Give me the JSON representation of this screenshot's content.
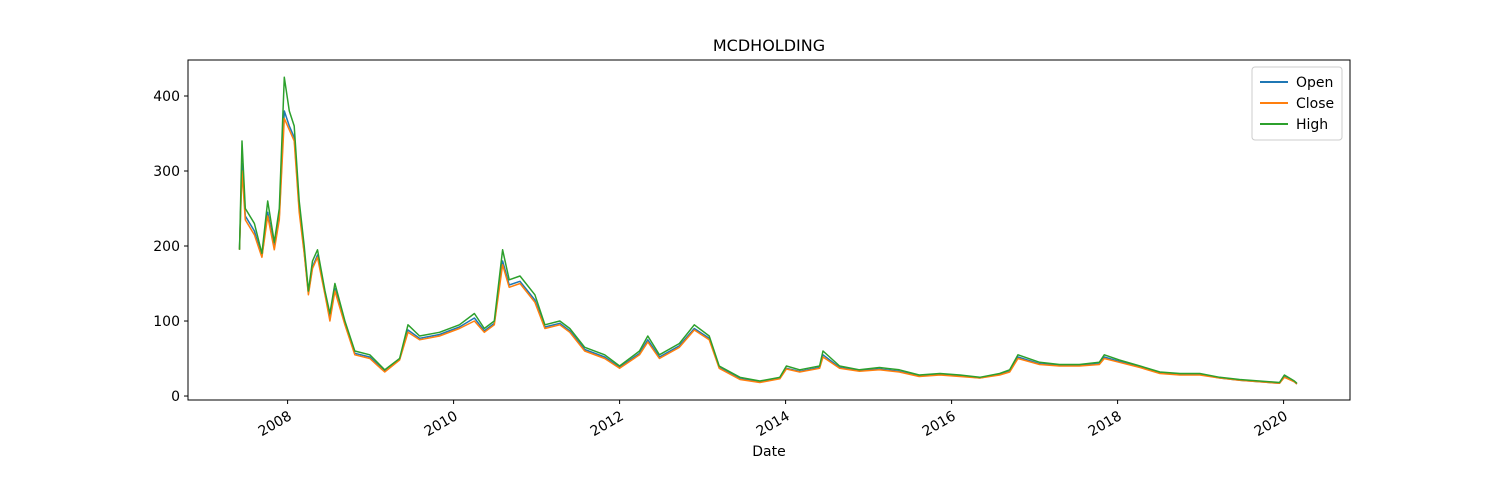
{
  "chart_data": {
    "type": "line",
    "title": "MCDHOLDING",
    "x_label": "Date",
    "x": [
      2007.42,
      2007.45,
      2007.49,
      2007.6,
      2007.69,
      2007.76,
      2007.84,
      2007.9,
      2007.96,
      2008.02,
      2008.08,
      2008.14,
      2008.2,
      2008.25,
      2008.3,
      2008.36,
      2008.45,
      2008.51,
      2008.57,
      2008.69,
      2008.81,
      2008.99,
      2009.17,
      2009.35,
      2009.45,
      2009.59,
      2009.83,
      2010.07,
      2010.25,
      2010.37,
      2010.49,
      2010.59,
      2010.67,
      2010.8,
      2010.98,
      2011.1,
      2011.28,
      2011.4,
      2011.58,
      2011.82,
      2012.0,
      2012.24,
      2012.34,
      2012.48,
      2012.72,
      2012.9,
      2013.08,
      2013.2,
      2013.45,
      2013.69,
      2013.93,
      2014.01,
      2014.17,
      2014.41,
      2014.45,
      2014.65,
      2014.89,
      2015.13,
      2015.37,
      2015.61,
      2015.86,
      2016.1,
      2016.34,
      2016.58,
      2016.7,
      2016.8,
      2017.06,
      2017.3,
      2017.54,
      2017.78,
      2017.84,
      2018.02,
      2018.27,
      2018.51,
      2018.75,
      2018.99,
      2019.23,
      2019.47,
      2019.71,
      2019.95,
      2020.01,
      2020.13,
      2020.16
    ],
    "series": [
      {
        "name": "Open",
        "color": "#1f77b4",
        "values": [
          196,
          310,
          240,
          220,
          186,
          245,
          198,
          240,
          380,
          360,
          345,
          250,
          192,
          137,
          172,
          188,
          137,
          104,
          143,
          97,
          57,
          52,
          33,
          49,
          88,
          77,
          82,
          92,
          104,
          87,
          97,
          180,
          148,
          153,
          128,
          92,
          97,
          87,
          62,
          52,
          38,
          57,
          75,
          52,
          67,
          90,
          77,
          38,
          23,
          19,
          24,
          37,
          33,
          38,
          55,
          38,
          34,
          36,
          33,
          27,
          29,
          27,
          24,
          29,
          33,
          52,
          43,
          41,
          41,
          43,
          52,
          46,
          39,
          31,
          29,
          29,
          24,
          21,
          19,
          17,
          26,
          19,
          16
        ]
      },
      {
        "name": "Close",
        "color": "#ff7f0e",
        "values": [
          195,
          300,
          235,
          215,
          185,
          240,
          195,
          235,
          370,
          355,
          340,
          245,
          190,
          135,
          170,
          185,
          135,
          100,
          140,
          95,
          55,
          50,
          32,
          48,
          85,
          75,
          80,
          90,
          100,
          85,
          95,
          175,
          145,
          150,
          125,
          90,
          95,
          85,
          60,
          50,
          37,
          55,
          72,
          50,
          65,
          88,
          75,
          37,
          22,
          18,
          23,
          36,
          32,
          37,
          52,
          37,
          33,
          35,
          32,
          26,
          28,
          26,
          24,
          28,
          32,
          50,
          42,
          40,
          40,
          42,
          50,
          45,
          38,
          30,
          28,
          28,
          24,
          21,
          19,
          17,
          25,
          19,
          16
        ]
      },
      {
        "name": "High",
        "color": "#2ca02c",
        "values": [
          195,
          340,
          250,
          230,
          190,
          260,
          205,
          250,
          425,
          380,
          360,
          260,
          200,
          140,
          180,
          195,
          140,
          110,
          150,
          100,
          60,
          55,
          35,
          50,
          95,
          80,
          85,
          95,
          110,
          90,
          100,
          195,
          155,
          160,
          135,
          95,
          100,
          90,
          65,
          55,
          40,
          60,
          80,
          55,
          70,
          95,
          80,
          40,
          25,
          20,
          25,
          40,
          35,
          40,
          60,
          40,
          35,
          38,
          35,
          28,
          30,
          28,
          25,
          30,
          35,
          55,
          45,
          42,
          42,
          45,
          55,
          48,
          40,
          32,
          30,
          30,
          25,
          22,
          20,
          18,
          28,
          20,
          17
        ]
      }
    ],
    "xlim": [
      2006.8,
      2020.8
    ],
    "xticks": [
      2008,
      2010,
      2012,
      2014,
      2016,
      2018,
      2020
    ],
    "ylim": [
      -5.3,
      448
    ],
    "yticks": [
      0,
      100,
      200,
      300,
      400
    ],
    "legend": "upper right",
    "grid": false
  }
}
